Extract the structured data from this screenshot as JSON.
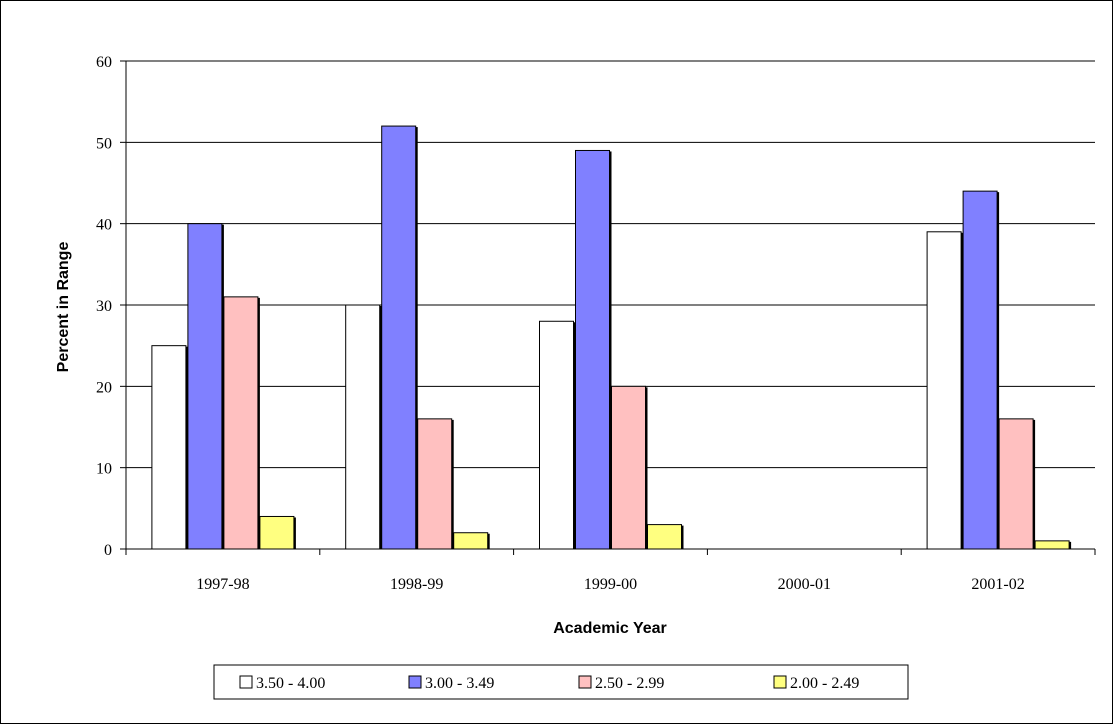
{
  "chart_data": {
    "type": "bar",
    "categories": [
      "1997-98",
      "1998-99",
      "1999-00",
      "2000-01",
      "2001-02"
    ],
    "series": [
      {
        "name": "3.50 - 4.00",
        "color": "#ffffff",
        "values": [
          25,
          30,
          28,
          0,
          39
        ]
      },
      {
        "name": "3.00 - 3.49",
        "color": "#8080ff",
        "values": [
          40,
          52,
          49,
          0,
          44
        ]
      },
      {
        "name": "2.50 - 2.99",
        "color": "#ffc0c0",
        "values": [
          31,
          16,
          20,
          0,
          16
        ]
      },
      {
        "name": "2.00 - 2.49",
        "color": "#ffff80",
        "values": [
          4,
          2,
          3,
          0,
          1
        ]
      }
    ],
    "title": "",
    "xlabel": "Academic Year",
    "ylabel": "Percent in Range",
    "ylim": [
      0,
      60
    ],
    "yticks": [
      0,
      10,
      20,
      30,
      40,
      50,
      60
    ],
    "grid": true,
    "legend_position": "bottom"
  }
}
